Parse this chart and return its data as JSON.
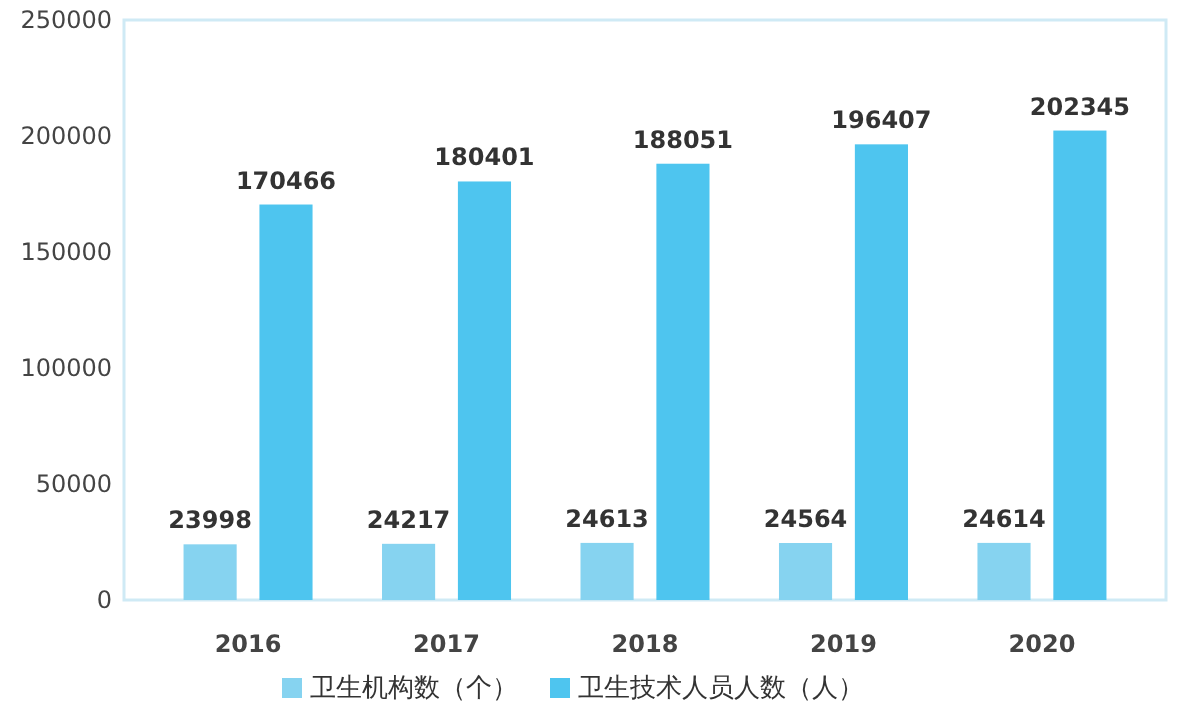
{
  "chart_data": {
    "type": "bar",
    "categories": [
      "2016",
      "2017",
      "2018",
      "2019",
      "2020"
    ],
    "series": [
      {
        "name": "卫生机构数（个）",
        "color": "#86d3f0",
        "values": [
          23998,
          24217,
          24613,
          24564,
          24614
        ]
      },
      {
        "name": "卫生技术人员人数（人）",
        "color": "#4ec5ef",
        "values": [
          170466,
          180401,
          188051,
          196407,
          202345
        ]
      }
    ],
    "ylim": [
      0,
      250000
    ],
    "yticks": [
      0,
      50000,
      100000,
      150000,
      200000,
      250000
    ],
    "grid": false,
    "legend": "bottom",
    "data_labels": true
  }
}
